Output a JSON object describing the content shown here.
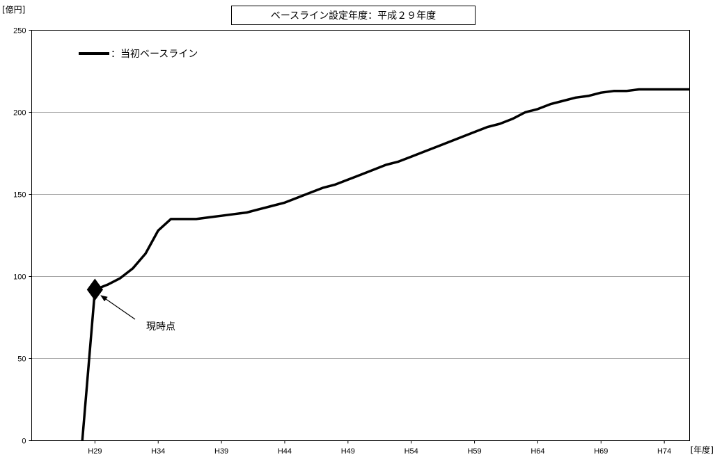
{
  "chart_data": {
    "type": "line",
    "title": "ベースライン設定年度：平成２９年度",
    "ylabel": "[億円]",
    "xlabel": "[年度]",
    "ylim": [
      0,
      250
    ],
    "yticks": [
      0,
      50,
      100,
      150,
      200,
      250
    ],
    "xlim": [
      24,
      76
    ],
    "xticks": [
      29,
      34,
      39,
      44,
      49,
      54,
      59,
      64,
      69,
      74
    ],
    "xtick_labels": [
      "H29",
      "H34",
      "H39",
      "H44",
      "H49",
      "H54",
      "H59",
      "H64",
      "H69",
      "H74"
    ],
    "x": [
      28,
      29,
      30,
      31,
      32,
      33,
      34,
      35,
      36,
      37,
      38,
      39,
      40,
      41,
      42,
      43,
      44,
      45,
      46,
      47,
      48,
      49,
      50,
      51,
      52,
      53,
      54,
      55,
      56,
      57,
      58,
      59,
      60,
      61,
      62,
      63,
      64,
      65,
      66,
      67,
      68,
      69,
      70,
      71,
      72,
      73,
      74,
      75,
      76
    ],
    "series": [
      {
        "name": "当初ベースライン",
        "color": "#000000",
        "values": [
          0,
          92,
          95,
          99,
          105,
          114,
          128,
          135,
          135,
          135,
          136,
          137,
          138,
          139,
          141,
          143,
          145,
          148,
          151,
          154,
          156,
          159,
          162,
          165,
          168,
          170,
          173,
          176,
          179,
          182,
          185,
          188,
          191,
          193,
          196,
          200,
          202,
          205,
          207,
          209,
          210,
          212,
          213,
          213,
          214,
          214,
          214,
          214,
          214
        ]
      }
    ],
    "legend": {
      "placement": "top-left",
      "prefix": "："
    },
    "grid": {
      "horizontal": true,
      "vertical": false,
      "color": "#a6a6a6"
    },
    "annotations": [
      {
        "text": "現時点",
        "x": 29,
        "y": 92,
        "marker": "diamond"
      }
    ]
  }
}
